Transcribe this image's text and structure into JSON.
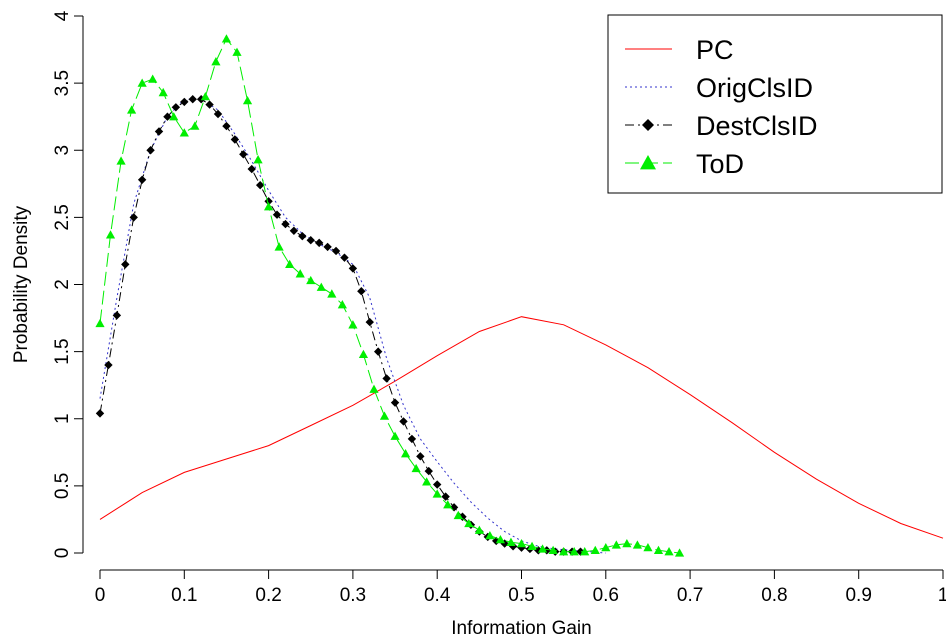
{
  "chart_data": {
    "type": "line",
    "title": "",
    "xlabel": "Information Gain",
    "ylabel": "Probability Density",
    "xlim": [
      0,
      1
    ],
    "ylim": [
      0,
      4
    ],
    "x_ticks": [
      0,
      0.1,
      0.2,
      0.3,
      0.4,
      0.5,
      0.6,
      0.7,
      0.8,
      0.9,
      1
    ],
    "x_tick_labels": [
      "0",
      "0.1",
      "0.2",
      "0.3",
      "0.4",
      "0.5",
      "0.6",
      "0.7",
      "0.8",
      "0.9",
      "1"
    ],
    "y_ticks": [
      0,
      0.5,
      1,
      1.5,
      2,
      2.5,
      3,
      3.5,
      4
    ],
    "y_tick_labels": [
      "0",
      "0.5",
      "1",
      "1.5",
      "2",
      "2.5",
      "3",
      "3.5",
      "4"
    ],
    "grid": false,
    "legend_position": "top-right",
    "series": [
      {
        "name": "PC",
        "color": "#ff0000",
        "line_style": "solid",
        "marker": "none",
        "x": [
          0,
          0.05,
          0.1,
          0.15,
          0.2,
          0.25,
          0.3,
          0.35,
          0.4,
          0.45,
          0.5,
          0.55,
          0.6,
          0.65,
          0.7,
          0.75,
          0.8,
          0.85,
          0.9,
          0.95,
          1.0
        ],
        "y": [
          0.25,
          0.45,
          0.6,
          0.7,
          0.8,
          0.95,
          1.1,
          1.28,
          1.47,
          1.65,
          1.76,
          1.7,
          1.55,
          1.38,
          1.18,
          0.97,
          0.75,
          0.55,
          0.37,
          0.22,
          0.11
        ]
      },
      {
        "name": "OrigClsID",
        "color": "#3333cc",
        "line_style": "dotted",
        "marker": "none",
        "x": [
          0,
          0.02,
          0.04,
          0.06,
          0.08,
          0.1,
          0.12,
          0.14,
          0.16,
          0.18,
          0.2,
          0.22,
          0.24,
          0.26,
          0.28,
          0.3,
          0.32,
          0.34,
          0.36,
          0.38,
          0.4,
          0.42,
          0.44,
          0.46,
          0.48,
          0.5,
          0.52,
          0.54,
          0.56,
          0.58,
          0.6
        ],
        "y": [
          1.15,
          1.9,
          2.6,
          3.0,
          3.25,
          3.38,
          3.38,
          3.3,
          3.12,
          2.92,
          2.7,
          2.5,
          2.38,
          2.3,
          2.24,
          2.15,
          1.9,
          1.45,
          1.1,
          0.85,
          0.68,
          0.52,
          0.38,
          0.26,
          0.16,
          0.09,
          0.05,
          0.03,
          0.02,
          0.01,
          0.0
        ]
      },
      {
        "name": "DestClsID",
        "color": "#000000",
        "line_style": "dashdot",
        "marker": "diamond",
        "x": [
          0,
          0.01,
          0.02,
          0.03,
          0.04,
          0.05,
          0.06,
          0.07,
          0.08,
          0.09,
          0.1,
          0.11,
          0.12,
          0.13,
          0.14,
          0.15,
          0.16,
          0.17,
          0.18,
          0.19,
          0.2,
          0.21,
          0.22,
          0.23,
          0.24,
          0.25,
          0.26,
          0.27,
          0.28,
          0.29,
          0.3,
          0.31,
          0.32,
          0.33,
          0.34,
          0.35,
          0.36,
          0.37,
          0.38,
          0.39,
          0.4,
          0.41,
          0.42,
          0.43,
          0.44,
          0.45,
          0.46,
          0.47,
          0.48,
          0.49,
          0.5,
          0.51,
          0.52,
          0.53,
          0.54,
          0.55,
          0.56,
          0.57
        ],
        "y": [
          1.04,
          1.4,
          1.77,
          2.15,
          2.5,
          2.78,
          3.0,
          3.14,
          3.25,
          3.32,
          3.36,
          3.38,
          3.38,
          3.34,
          3.27,
          3.18,
          3.08,
          2.97,
          2.86,
          2.74,
          2.62,
          2.52,
          2.45,
          2.4,
          2.36,
          2.33,
          2.31,
          2.28,
          2.25,
          2.2,
          2.12,
          1.95,
          1.72,
          1.5,
          1.3,
          1.12,
          0.98,
          0.85,
          0.72,
          0.61,
          0.51,
          0.42,
          0.34,
          0.27,
          0.21,
          0.16,
          0.12,
          0.09,
          0.07,
          0.05,
          0.04,
          0.03,
          0.02,
          0.02,
          0.01,
          0.01,
          0.01,
          0.01
        ]
      },
      {
        "name": "ToD",
        "color": "#00ee00",
        "line_style": "longdash",
        "marker": "triangle",
        "x": [
          0,
          0.0125,
          0.025,
          0.0375,
          0.05,
          0.0625,
          0.075,
          0.0875,
          0.1,
          0.1125,
          0.125,
          0.1375,
          0.15,
          0.1625,
          0.175,
          0.1875,
          0.2,
          0.2125,
          0.225,
          0.2375,
          0.25,
          0.2625,
          0.275,
          0.2875,
          0.3,
          0.3125,
          0.325,
          0.3375,
          0.35,
          0.3625,
          0.375,
          0.3875,
          0.4,
          0.4125,
          0.425,
          0.4375,
          0.45,
          0.4625,
          0.475,
          0.4875,
          0.5,
          0.5125,
          0.525,
          0.5375,
          0.55,
          0.5625,
          0.575,
          0.5875,
          0.6,
          0.6125,
          0.625,
          0.6375,
          0.65,
          0.6625,
          0.675,
          0.6875
        ],
        "y": [
          1.71,
          2.37,
          2.92,
          3.3,
          3.5,
          3.53,
          3.43,
          3.25,
          3.13,
          3.18,
          3.4,
          3.66,
          3.83,
          3.73,
          3.37,
          2.93,
          2.58,
          2.28,
          2.15,
          2.08,
          2.03,
          1.98,
          1.93,
          1.85,
          1.7,
          1.48,
          1.22,
          1.02,
          0.87,
          0.74,
          0.63,
          0.53,
          0.44,
          0.36,
          0.28,
          0.22,
          0.17,
          0.13,
          0.1,
          0.08,
          0.07,
          0.05,
          0.03,
          0.02,
          0.01,
          0.01,
          0.01,
          0.02,
          0.04,
          0.06,
          0.07,
          0.06,
          0.04,
          0.02,
          0.01,
          0.0
        ]
      }
    ]
  }
}
